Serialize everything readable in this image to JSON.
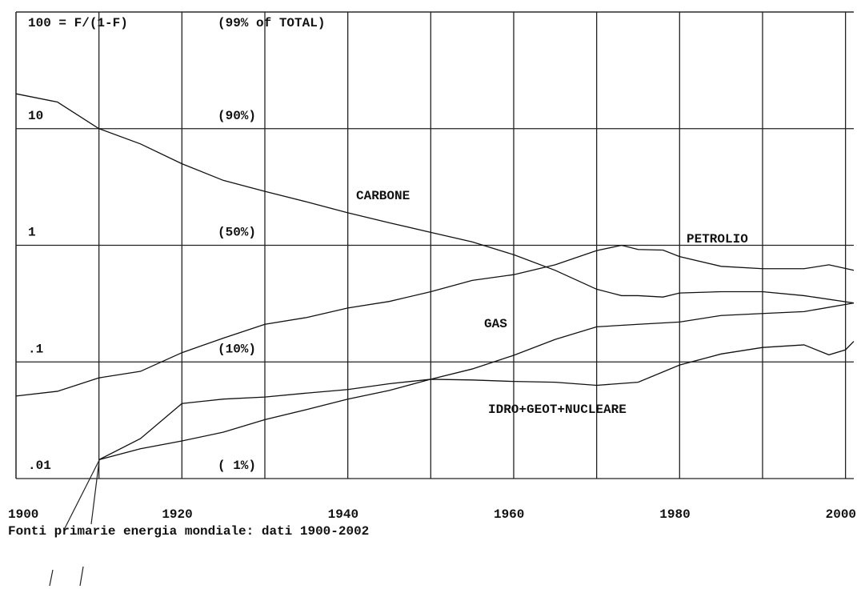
{
  "chart_data": {
    "type": "line",
    "title": "Fonti primarie energia mondiale: dati 1900-2002",
    "log_y": true,
    "grid": true,
    "xlim": [
      1900,
      2001
    ],
    "xticks": [
      1900,
      1920,
      1940,
      1960,
      1980,
      2000
    ],
    "x_minor_ticks": [
      1910,
      1930,
      1950,
      1970,
      1990
    ],
    "ylim": [
      0.01,
      100
    ],
    "yticks": [
      {
        "value": 0.01,
        "label": ".01"
      },
      {
        "value": 0.1,
        "label": ".1"
      },
      1,
      10,
      {
        "value": 100,
        "label": "100 = F/(1-F)"
      }
    ],
    "y_percent_labels": [
      "( 1%)",
      "(10%)",
      "(50%)",
      "(90%)",
      "(99% of TOTAL)"
    ],
    "series": [
      {
        "name": "CARBONE",
        "color": "#111111",
        "x": [
          1900,
          1905,
          1910,
          1915,
          1920,
          1925,
          1930,
          1935,
          1940,
          1945,
          1950,
          1955,
          1960,
          1965,
          1970,
          1973,
          1975,
          1978,
          1980,
          1985,
          1990,
          1995,
          2001
        ],
        "values": [
          19.9,
          16.9,
          10,
          7.4,
          5.0,
          3.6,
          2.9,
          2.36,
          1.9,
          1.56,
          1.29,
          1.07,
          0.83,
          0.61,
          0.42,
          0.37,
          0.37,
          0.36,
          0.39,
          0.4,
          0.4,
          0.37,
          0.32
        ]
      },
      {
        "name": "PETROLIO",
        "color": "#111111",
        "x": [
          1900,
          1905,
          1910,
          1915,
          1920,
          1925,
          1930,
          1935,
          1940,
          1945,
          1950,
          1955,
          1960,
          1965,
          1970,
          1973,
          1975,
          1978,
          1980,
          1985,
          1990,
          1995,
          1998,
          2001
        ],
        "values": [
          0.051,
          0.056,
          0.073,
          0.083,
          0.12,
          0.16,
          0.21,
          0.24,
          0.29,
          0.33,
          0.4,
          0.5,
          0.56,
          0.68,
          0.9,
          1.0,
          0.92,
          0.91,
          0.8,
          0.66,
          0.63,
          0.63,
          0.68,
          0.61
        ]
      },
      {
        "name": "GAS",
        "color": "#111111",
        "x": [
          1910,
          1915,
          1920,
          1925,
          1930,
          1935,
          1940,
          1945,
          1950,
          1955,
          1960,
          1965,
          1970,
          1975,
          1980,
          1985,
          1990,
          1995,
          2001
        ],
        "values": [
          0.0145,
          0.018,
          0.021,
          0.025,
          0.032,
          0.039,
          0.048,
          0.057,
          0.071,
          0.087,
          0.114,
          0.156,
          0.2,
          0.21,
          0.22,
          0.25,
          0.26,
          0.27,
          0.32
        ]
      },
      {
        "name": "IDRO+GEOT+NUCLEARE",
        "color": "#111111",
        "x": [
          1910,
          1915,
          1920,
          1925,
          1930,
          1935,
          1940,
          1945,
          1950,
          1955,
          1960,
          1965,
          1970,
          1975,
          1980,
          1985,
          1990,
          1995,
          1998,
          2000,
          2001
        ],
        "values": [
          0.0145,
          0.022,
          0.044,
          0.048,
          0.05,
          0.054,
          0.058,
          0.065,
          0.071,
          0.07,
          0.068,
          0.067,
          0.063,
          0.067,
          0.094,
          0.117,
          0.133,
          0.14,
          0.115,
          0.127,
          0.15
        ]
      }
    ]
  }
}
